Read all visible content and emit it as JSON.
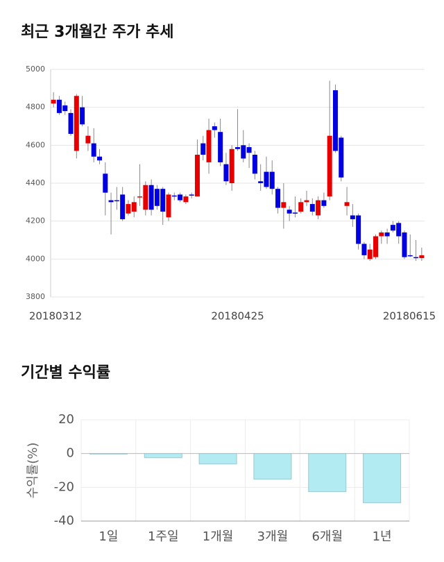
{
  "chart_data": [
    {
      "type": "candlestick",
      "title": "최근 3개월간 주가 추세",
      "categories": [
        "20180312",
        null,
        null,
        null,
        null,
        null,
        null,
        null,
        null,
        null,
        null,
        null,
        null,
        null,
        null,
        null,
        null,
        null,
        null,
        null,
        null,
        null,
        null,
        null,
        null,
        null,
        null,
        null,
        null,
        null,
        null,
        null,
        "20180425",
        null,
        null,
        null,
        null,
        null,
        null,
        null,
        null,
        null,
        null,
        null,
        null,
        null,
        null,
        null,
        null,
        null,
        null,
        null,
        null,
        null,
        null,
        null,
        null,
        null,
        null,
        null,
        null,
        null,
        null,
        null,
        "20180615"
      ],
      "open": [
        4820,
        4840,
        4810,
        4770,
        4570,
        4800,
        4610,
        4610,
        4540,
        4450,
        4310,
        4310,
        4340,
        4240,
        4250,
        4325,
        4260,
        4390,
        4370,
        4370,
        4220,
        4335,
        4340,
        4300,
        4340,
        4330,
        4610,
        4510,
        4700,
        4670,
        4500,
        4400,
        4590,
        4600,
        4590,
        4550,
        4410,
        4460,
        4460,
        4370,
        4270,
        4260,
        4245,
        4250,
        4300,
        4290,
        4230,
        4310,
        4330,
        4890,
        4640,
        4280,
        4230,
        4230,
        4080,
        4000,
        4010,
        4120,
        4140,
        4180,
        4190,
        4140,
        4020,
        4010,
        4005
      ],
      "high": [
        4880,
        4860,
        4830,
        4790,
        4870,
        4860,
        4700,
        4690,
        4580,
        4510,
        4350,
        4380,
        4380,
        4310,
        4330,
        4500,
        4410,
        4420,
        4390,
        4380,
        4350,
        4350,
        4350,
        4340,
        4350,
        4630,
        4650,
        4740,
        4720,
        4740,
        4560,
        4600,
        4790,
        4680,
        4610,
        4570,
        4500,
        4540,
        4520,
        4380,
        4400,
        4280,
        4330,
        4320,
        4360,
        4320,
        4330,
        4350,
        4940,
        4920,
        4650,
        4380,
        4290,
        4240,
        4090,
        4080,
        4130,
        4150,
        4160,
        4200,
        4200,
        4150,
        4130,
        4100,
        4060
      ],
      "low": [
        4800,
        4760,
        4760,
        4650,
        4530,
        4700,
        4570,
        4510,
        4500,
        4230,
        4130,
        4260,
        4200,
        4230,
        4220,
        4280,
        4230,
        4230,
        4260,
        4180,
        4200,
        4310,
        4300,
        4290,
        4320,
        4330,
        4520,
        4450,
        4640,
        4490,
        4390,
        4360,
        4570,
        4510,
        4480,
        4420,
        4360,
        4370,
        4340,
        4240,
        4160,
        4200,
        4220,
        4240,
        4280,
        4230,
        4210,
        4270,
        4310,
        4560,
        4410,
        4230,
        4170,
        4050,
        4000,
        3990,
        4000,
        4080,
        4080,
        4140,
        4080,
        4000,
        4010,
        3990,
        3990
      ],
      "close": [
        4840,
        4770,
        4780,
        4660,
        4860,
        4710,
        4650,
        4540,
        4520,
        4350,
        4300,
        4305,
        4210,
        4290,
        4300,
        4330,
        4390,
        4260,
        4280,
        4250,
        4340,
        4330,
        4310,
        4330,
        4335,
        4550,
        4550,
        4680,
        4680,
        4510,
        4410,
        4580,
        4580,
        4530,
        4560,
        4450,
        4400,
        4380,
        4370,
        4270,
        4300,
        4240,
        4240,
        4300,
        4310,
        4250,
        4310,
        4280,
        4650,
        4570,
        4430,
        4300,
        4210,
        4080,
        4020,
        4050,
        4120,
        4140,
        4120,
        4150,
        4120,
        4010,
        4015,
        4005,
        4020
      ],
      "up_color": "#e60000",
      "down_color": "#0000e0",
      "ylim": [
        3800,
        5000
      ],
      "yticks": [
        3800,
        4000,
        4200,
        4400,
        4600,
        4800,
        5000
      ],
      "grid": true
    },
    {
      "type": "bar",
      "title": "기간별 수익률",
      "y_label": "수익률(%)",
      "categories": [
        "1일",
        "1주일",
        "1개월",
        "3개월",
        "6개월",
        "1년"
      ],
      "values": [
        -0.3,
        -2.5,
        -6.2,
        -15.2,
        -22.6,
        -29.2
      ],
      "color": "#b2ebf2",
      "ylim": [
        -40,
        20
      ],
      "yticks": [
        -40,
        -20,
        0,
        20
      ],
      "grid": true
    }
  ]
}
